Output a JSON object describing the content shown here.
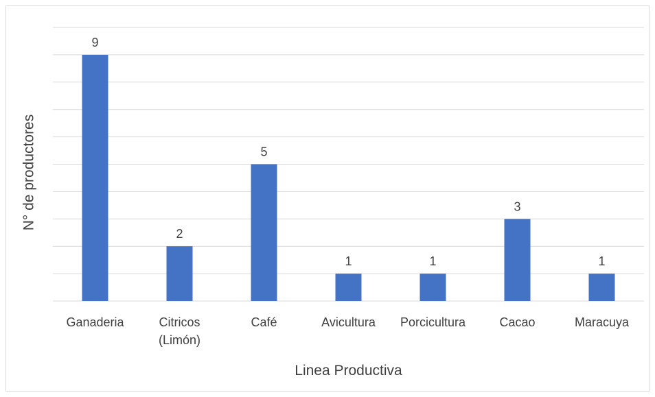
{
  "chart_data": {
    "type": "bar",
    "title": "",
    "xlabel": "Linea Productiva",
    "ylabel": "N° de productores",
    "categories": [
      [
        "Ganaderia"
      ],
      [
        "Citricos",
        "(Limón)"
      ],
      [
        "Café"
      ],
      [
        "Avicultura"
      ],
      [
        "Porcicultura"
      ],
      [
        "Cacao"
      ],
      [
        "Maracuya"
      ]
    ],
    "values": [
      9,
      2,
      5,
      1,
      1,
      3,
      1
    ],
    "ylim": [
      0,
      10
    ],
    "grid": true,
    "legend": "none",
    "colors": {
      "bar": "#4472C4",
      "grid": "#d9d9d9",
      "text": "#404040"
    }
  }
}
